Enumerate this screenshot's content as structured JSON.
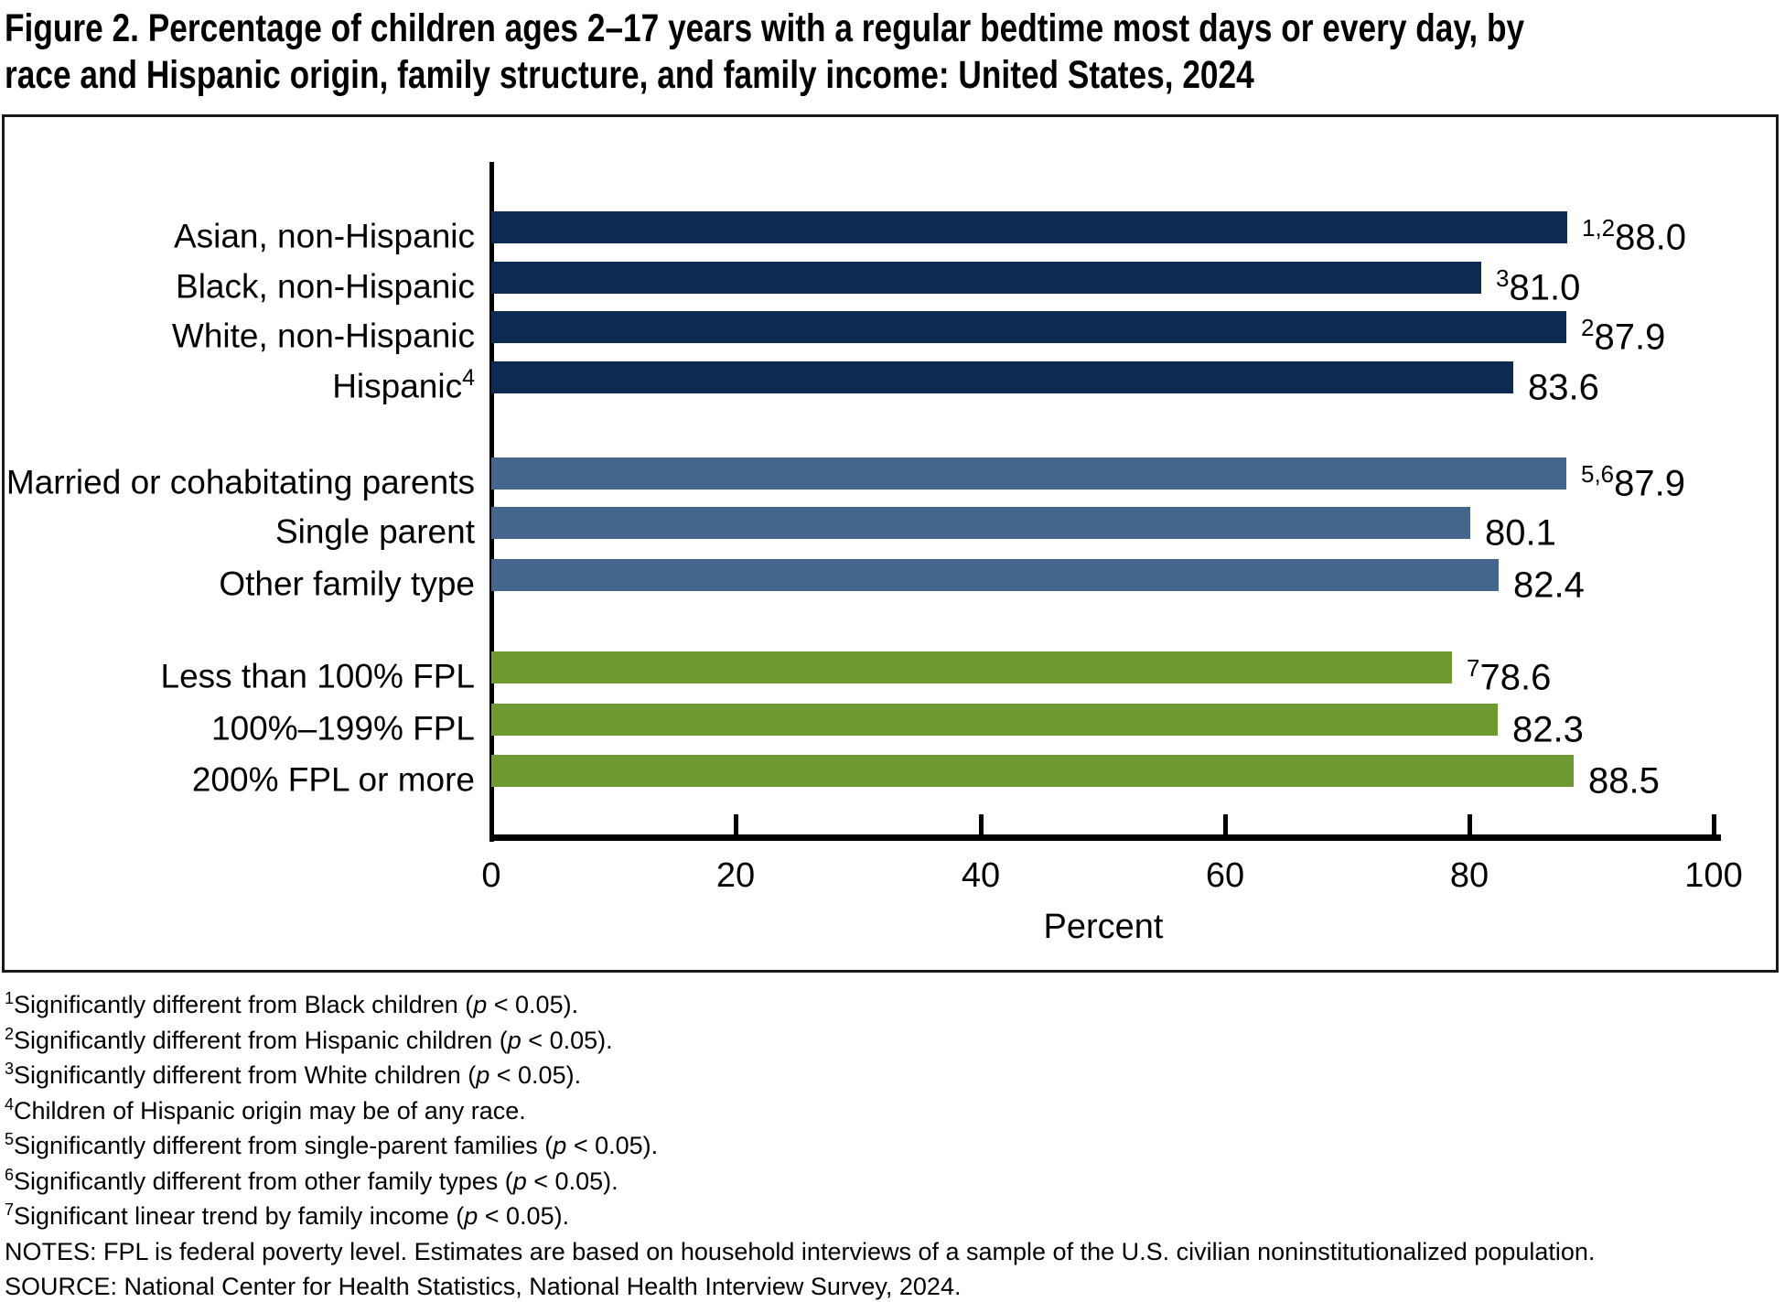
{
  "title": {
    "line1": "Figure 2. Percentage of children ages 2–17 years with a regular bedtime most days or every day, by",
    "line2": "race and Hispanic origin, family structure, and family income: United States, 2024"
  },
  "chart_data": {
    "type": "bar",
    "orientation": "horizontal",
    "title": "Percentage of children ages 2–17 years with a regular bedtime most days or every day, by race and Hispanic origin, family structure, and family income: United States, 2024",
    "xlabel": "Percent",
    "xlim": [
      0,
      100
    ],
    "grid": false,
    "legend": false,
    "colors": {
      "race": "#0b2b51",
      "family": "#44658c",
      "income": "#6d9b31"
    },
    "x_axis": {
      "label": "Percent",
      "ticks": [
        0,
        20,
        40,
        60,
        80,
        100
      ]
    },
    "rows": [
      {
        "label": "Asian, non-Hispanic",
        "label_sup": "",
        "value": 88.0,
        "value_text": "88.0",
        "value_sup": "1,2",
        "group": "race"
      },
      {
        "label": "Black, non-Hispanic",
        "label_sup": "",
        "value": 81.0,
        "value_text": "81.0",
        "value_sup": "3",
        "group": "race"
      },
      {
        "label": "White, non-Hispanic",
        "label_sup": "",
        "value": 87.9,
        "value_text": "87.9",
        "value_sup": "2",
        "group": "race"
      },
      {
        "label": "Hispanic",
        "label_sup": "4",
        "value": 83.6,
        "value_text": "83.6",
        "value_sup": "",
        "group": "race"
      },
      {
        "label": "Married or cohabitating parents",
        "label_sup": "",
        "value": 87.9,
        "value_text": "87.9",
        "value_sup": "5,6",
        "group": "family"
      },
      {
        "label": "Single parent",
        "label_sup": "",
        "value": 80.1,
        "value_text": "80.1",
        "value_sup": "",
        "group": "family"
      },
      {
        "label": "Other family type",
        "label_sup": "",
        "value": 82.4,
        "value_text": "82.4",
        "value_sup": "",
        "group": "family"
      },
      {
        "label": "Less than 100% FPL",
        "label_sup": "",
        "value": 78.6,
        "value_text": "78.6",
        "value_sup": "7",
        "group": "income"
      },
      {
        "label": "100%–199% FPL",
        "label_sup": "",
        "value": 82.3,
        "value_text": "82.3",
        "value_sup": "",
        "group": "income"
      },
      {
        "label": "200% FPL or more",
        "label_sup": "",
        "value": 88.5,
        "value_text": "88.5",
        "value_sup": "",
        "group": "income"
      }
    ]
  },
  "footnotes": [
    {
      "sup": "1",
      "pre": "Significantly different from Black children (",
      "it": "p",
      "post": " < 0.05)."
    },
    {
      "sup": "2",
      "pre": "Significantly different from Hispanic children (",
      "it": "p",
      "post": " < 0.05)."
    },
    {
      "sup": "3",
      "pre": "Significantly different from White children (",
      "it": "p",
      "post": " < 0.05)."
    },
    {
      "sup": "4",
      "pre": "Children of Hispanic origin may be of any race.",
      "it": "",
      "post": ""
    },
    {
      "sup": "5",
      "pre": "Significantly different from single-parent families (",
      "it": "p",
      "post": " < 0.05)."
    },
    {
      "sup": "6",
      "pre": "Significantly different from other family types (",
      "it": "p",
      "post": " < 0.05)."
    },
    {
      "sup": "7",
      "pre": "Significant linear trend by family income (",
      "it": "p",
      "post": " < 0.05)."
    },
    {
      "sup": "",
      "pre": "NOTES: FPL is federal poverty level. Estimates are based on household interviews of a sample of the U.S. civilian noninstitutionalized population.",
      "it": "",
      "post": ""
    },
    {
      "sup": "",
      "pre": "SOURCE: National Center for Health Statistics, National Health Interview Survey, 2024.",
      "it": "",
      "post": ""
    }
  ]
}
